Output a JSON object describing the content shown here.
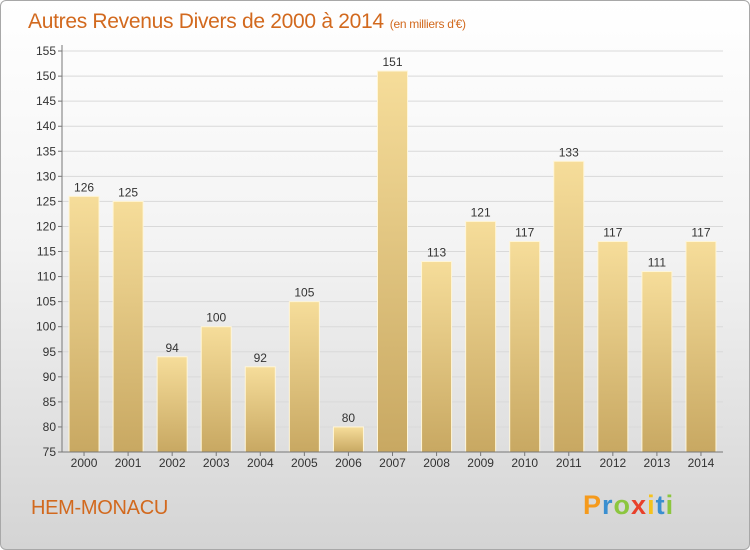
{
  "chart_data": {
    "type": "bar",
    "title": "Autres Revenus Divers de 2000 à 2014",
    "subtitle": "(en milliers d'€)",
    "categories": [
      "2000",
      "2001",
      "2002",
      "2003",
      "2004",
      "2005",
      "2006",
      "2007",
      "2008",
      "2009",
      "2010",
      "2011",
      "2012",
      "2013",
      "2014"
    ],
    "values": [
      126,
      125,
      94,
      100,
      92,
      105,
      80,
      151,
      113,
      121,
      117,
      133,
      117,
      111,
      117
    ],
    "ylim": [
      75,
      155
    ],
    "yticks": [
      75,
      80,
      85,
      90,
      95,
      100,
      105,
      110,
      115,
      120,
      125,
      130,
      135,
      140,
      145,
      150,
      155
    ],
    "grid": true,
    "bar_color": "#e9cb82"
  },
  "footer": {
    "location": "HEM-MONACU"
  },
  "logo": {
    "letters": [
      "P",
      "r",
      "o",
      "x",
      "i",
      "t",
      "i"
    ],
    "colors": [
      "#f59a1c",
      "#3a8fd0",
      "#8cc63f",
      "#e8402a",
      "#f5c21c",
      "#3a8fd0",
      "#8cc63f"
    ]
  }
}
